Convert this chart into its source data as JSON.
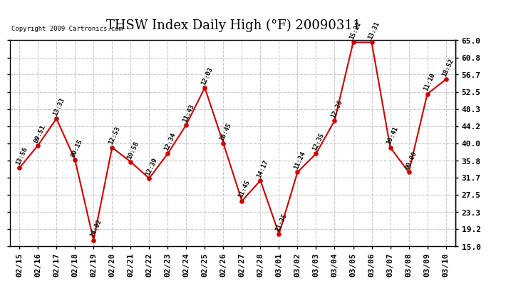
{
  "title": "THSW Index Daily High (°F) 20090311",
  "copyright": "Copyright 2009 Cartronics.com",
  "dates": [
    "02/15",
    "02/16",
    "02/17",
    "02/18",
    "02/19",
    "02/20",
    "02/21",
    "02/22",
    "02/23",
    "02/24",
    "02/25",
    "02/26",
    "02/27",
    "02/28",
    "03/01",
    "03/02",
    "03/03",
    "03/04",
    "03/05",
    "03/06",
    "03/07",
    "03/08",
    "03/09",
    "03/10"
  ],
  "values": [
    34.0,
    39.5,
    46.0,
    36.0,
    16.5,
    39.0,
    35.5,
    31.5,
    37.5,
    44.5,
    53.5,
    40.0,
    26.0,
    31.0,
    18.0,
    33.0,
    37.5,
    45.5,
    64.5,
    64.5,
    39.0,
    33.0,
    52.0,
    55.5
  ],
  "labels": [
    "13:56",
    "09:51",
    "13:33",
    "00:15",
    "14:02",
    "12:53",
    "10:58",
    "12:39",
    "12:34",
    "11:43",
    "12:03",
    "16:45",
    "11:45",
    "14:17",
    "11:35",
    "11:24",
    "12:35",
    "12:36",
    "15:22",
    "13:31",
    "10:41",
    "00:00",
    "11:10",
    "18:52"
  ],
  "ylim": [
    15.0,
    65.0
  ],
  "yticks": [
    15.0,
    19.2,
    23.3,
    27.5,
    31.7,
    35.8,
    40.0,
    44.2,
    48.3,
    52.5,
    56.7,
    60.8,
    65.0
  ],
  "line_color": "#cc0000",
  "marker_color": "#cc0000",
  "bg_color": "#ffffff",
  "grid_color": "#c8c8c8",
  "title_fontsize": 13,
  "label_fontsize": 6.5,
  "tick_fontsize": 8.0,
  "copyright_fontsize": 6.5
}
